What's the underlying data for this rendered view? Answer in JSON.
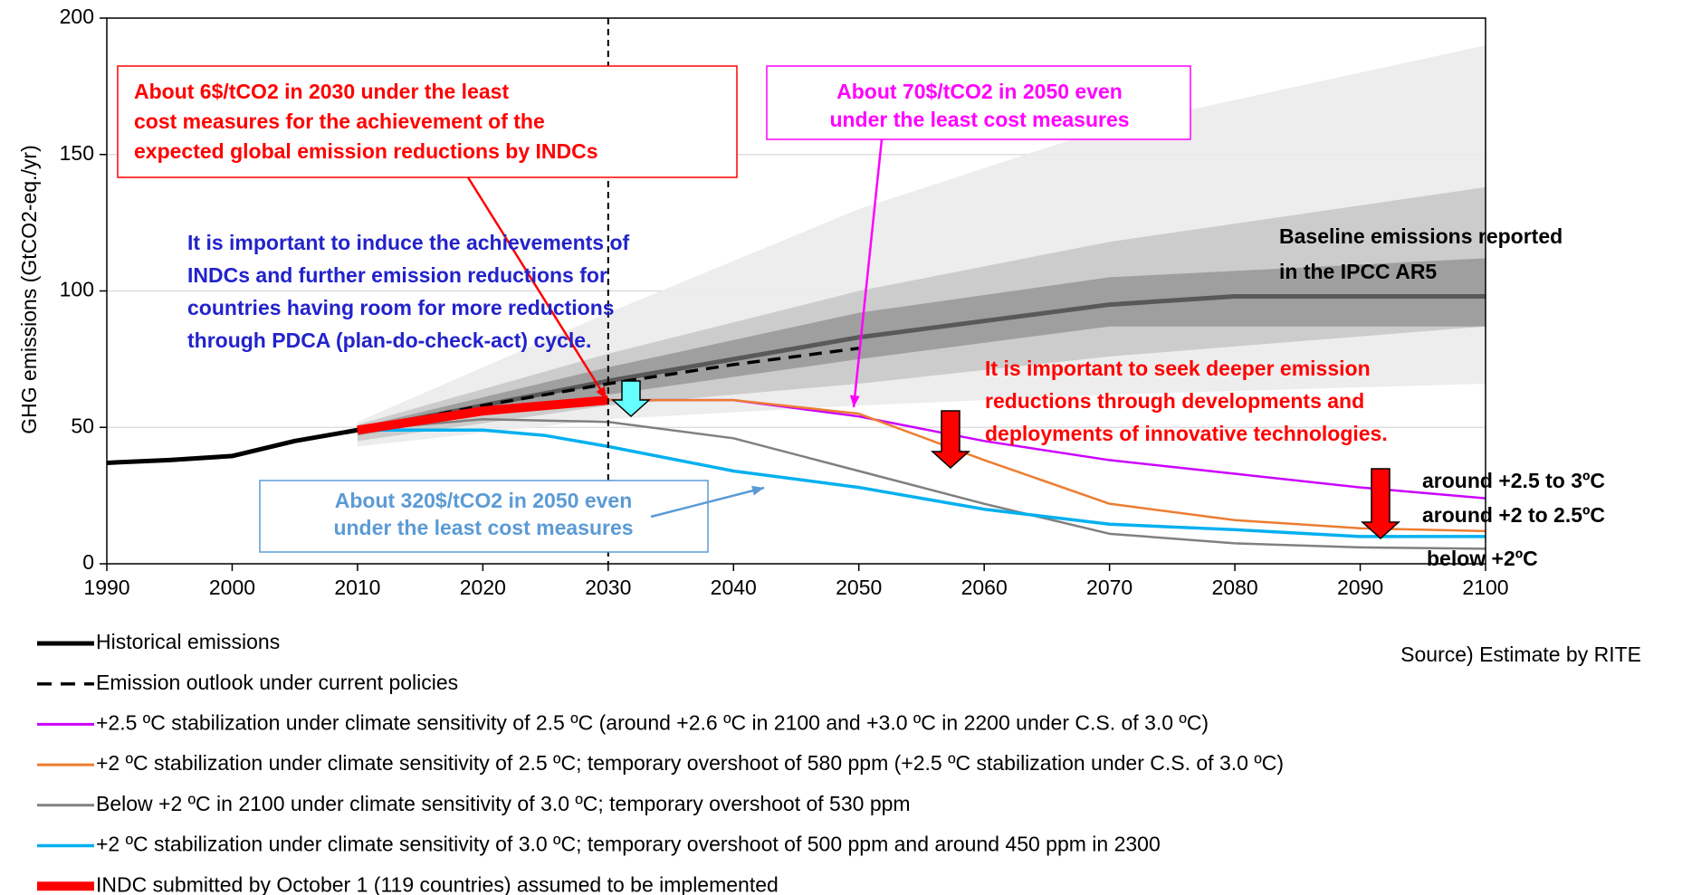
{
  "chart_data": {
    "type": "line",
    "y_label": "GHG emissions (GtCO2-eq./yr)",
    "xlim": [
      1990,
      2100
    ],
    "xticks": [
      1990,
      2000,
      2010,
      2020,
      2030,
      2040,
      2050,
      2060,
      2070,
      2080,
      2090,
      2100
    ],
    "ylim": [
      0,
      200
    ],
    "yticks": [
      0,
      50,
      100,
      150,
      200
    ],
    "grid": true,
    "vline": 2030,
    "bands": [
      {
        "color": "#ebebeb",
        "x": [
          2010,
          2030,
          2050,
          2070,
          2100
        ],
        "lower": [
          43,
          53,
          58,
          62,
          66
        ],
        "upper": [
          52,
          92,
          130,
          160,
          190
        ]
      },
      {
        "color": "#c8c8c8",
        "x": [
          2010,
          2030,
          2050,
          2070,
          2100
        ],
        "lower": [
          45,
          58,
          66,
          76,
          87
        ],
        "upper": [
          51,
          77,
          100,
          118,
          138
        ]
      },
      {
        "color": "#9a9a9a",
        "x": [
          2010,
          2030,
          2050,
          2070,
          2100
        ],
        "lower": [
          47,
          62,
          75,
          87,
          87
        ],
        "upper": [
          50,
          72,
          92,
          105,
          112
        ]
      }
    ],
    "baseline": {
      "color": "#595959",
      "x": [
        2010,
        2030,
        2050,
        2070,
        2080,
        2100
      ],
      "values": [
        49,
        67,
        83,
        95,
        98,
        98
      ]
    },
    "series": [
      {
        "name": "Historical emissions",
        "color": "#000000",
        "width": 5,
        "x": [
          1990,
          1995,
          2000,
          2005,
          2010
        ],
        "values": [
          37,
          38,
          39.5,
          45,
          49
        ]
      },
      {
        "name": "Emission outlook under current policies",
        "color": "#000000",
        "width": 3.5,
        "dashed": true,
        "x": [
          2010,
          2020,
          2030,
          2040,
          2050
        ],
        "values": [
          49,
          58,
          66,
          73,
          79
        ]
      },
      {
        "name": "+2.5 ºC stabilization under climate sensitivity of 2.5 ºC (around +2.6 ºC in 2100 and +3.0 ºC in 2200 under C.S. of 3.0 ºC)",
        "color": "#cc00ff",
        "width": 2.5,
        "x": [
          2030,
          2040,
          2050,
          2060,
          2070,
          2080,
          2090,
          2100
        ],
        "values": [
          60,
          60,
          54,
          45,
          38,
          33,
          28,
          24
        ]
      },
      {
        "name": "+2 ºC stabilization under climate sensitivity of 2.5 ºC; temporary overshoot of 580 ppm (+2.5 ºC stabilization under C.S. of 3.0 ºC)",
        "color": "#ed7d31",
        "width": 2.5,
        "x": [
          2030,
          2040,
          2050,
          2060,
          2070,
          2080,
          2090,
          2100
        ],
        "values": [
          60,
          60,
          55,
          38,
          22,
          16,
          13,
          12
        ]
      },
      {
        "name": "Below +2 ºC in 2100 under climate sensitivity of 3.0 ºC; temporary overshoot of 530 ppm",
        "color": "#808080",
        "width": 2.5,
        "x": [
          2010,
          2020,
          2030,
          2040,
          2050,
          2060,
          2070,
          2080,
          2090,
          2100
        ],
        "values": [
          49,
          53,
          52,
          46,
          34,
          22,
          11,
          7.5,
          6,
          5.5
        ]
      },
      {
        "name": "+2 ºC stabilization under climate sensitivity of 3.0 ºC; temporary overshoot of 500 ppm and around 450 ppm in 2300",
        "color": "#00b0f0",
        "width": 3.5,
        "x": [
          2010,
          2020,
          2025,
          2030,
          2040,
          2050,
          2060,
          2070,
          2080,
          2090,
          2100
        ],
        "values": [
          49,
          49,
          47,
          43,
          34,
          28,
          20,
          14.5,
          12.5,
          10,
          10
        ]
      },
      {
        "name": "INDC submitted by October 1 (119 countries) assumed to be implemented",
        "color": "#ff0000",
        "width": 10,
        "x": [
          2010,
          2020,
          2030
        ],
        "values": [
          49,
          56,
          60
        ]
      }
    ],
    "annotations": [
      {
        "color": "#ff0000",
        "lines": [
          "About 6$/tCO2 in 2030 under the least",
          "cost measures for the achievement of the",
          "expected global emission reductions by INDCs"
        ]
      },
      {
        "color": "#ff00ff",
        "lines": [
          "About 70$/tCO2 in 2050 even",
          "under the least cost measures"
        ]
      },
      {
        "color": "#2222cc",
        "lines": [
          "It is important to induce the achievements of",
          "INDCs and further emission reductions for",
          "countries having room for more reductions",
          "through PDCA (plan-do-check-act) cycle."
        ]
      },
      {
        "color": "#5b9bd5",
        "lines": [
          "About 320$/tCO2 in 2050 even",
          "under the least cost measures"
        ]
      },
      {
        "color": "#ff0000",
        "lines": [
          "It is important to seek deeper emission",
          "reductions through developments and",
          "deployments of innovative technologies."
        ]
      },
      {
        "color": "#000000",
        "lines": [
          "Baseline emissions reported",
          "in the IPCC AR5"
        ]
      },
      {
        "color": "#000000",
        "lines": [
          "around +2.5 to 3ºC"
        ]
      },
      {
        "color": "#000000",
        "lines": [
          "around +2 to 2.5ºC"
        ]
      },
      {
        "color": "#000000",
        "lines": [
          "below +2ºC"
        ]
      }
    ],
    "source": "Source) Estimate by RITE"
  }
}
